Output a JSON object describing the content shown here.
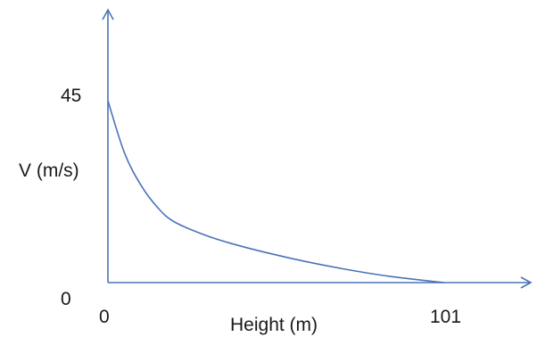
{
  "chart_data": {
    "type": "line",
    "title": "",
    "xlabel": "Height (m)",
    "ylabel": "V (m/s)",
    "xlim": [
      0,
      101
    ],
    "ylim": [
      0,
      45
    ],
    "x_tick_labels": [
      "0",
      "101"
    ],
    "y_tick_labels": [
      "0",
      "45"
    ],
    "grid": false,
    "legend": "none",
    "series": [
      {
        "x": [
          0,
          5,
          10,
          15,
          20,
          30,
          40,
          55,
          70,
          85,
          101
        ],
        "values": [
          45,
          32,
          24,
          18.5,
          15,
          11.5,
          9,
          6,
          3.5,
          1.5,
          0
        ]
      }
    ],
    "colors": {
      "axis": "#4a73b8",
      "series": "#4a73b8",
      "text": "#1a1a1a"
    }
  }
}
